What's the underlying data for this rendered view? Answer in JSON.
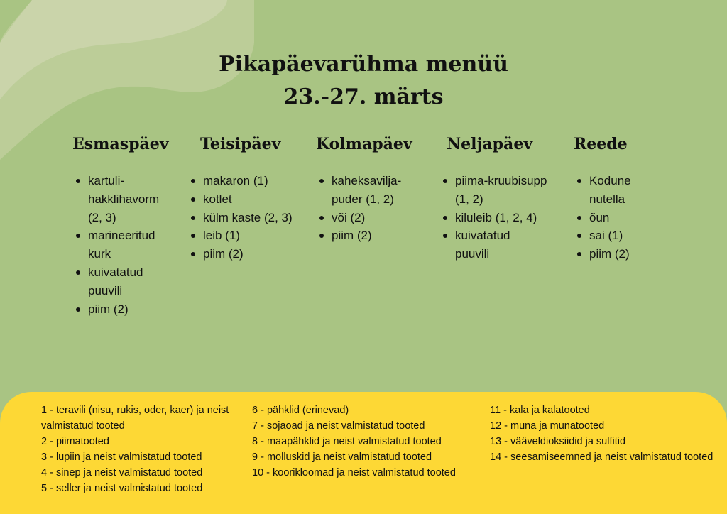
{
  "title": {
    "line1": "Pikapäevarühma menüü",
    "line2": "23.-27. märts"
  },
  "colors": {
    "background": "#a9c483",
    "legend_background": "#fdd835"
  },
  "days": [
    {
      "name": "Esmaspäev",
      "items": [
        "kartuli-hakklihavorm (2, 3)",
        "marineeritud kurk",
        "kuivatatud puuvili",
        "piim (2)"
      ]
    },
    {
      "name": "Teisipäev",
      "items": [
        "makaron (1)",
        "kotlet",
        "külm kaste (2, 3)",
        "leib (1)",
        "piim (2)"
      ]
    },
    {
      "name": "Kolmapäev",
      "items": [
        "kaheksavilja-puder (1, 2)",
        "või (2)",
        "piim (2)"
      ]
    },
    {
      "name": "Neljapäev",
      "items": [
        "piima-kruubisupp (1, 2)",
        "kiluleib (1, 2, 4)",
        "kuivatatud puuvili"
      ]
    },
    {
      "name": "Reede",
      "items": [
        "Kodune nutella",
        "õun",
        "sai (1)",
        "piim (2)"
      ]
    }
  ],
  "legend": [
    [
      "1 - teravili (nisu, rukis, oder, kaer) ja neist valmistatud tooted",
      "2 - piimatooted",
      "3 - lupiin ja neist valmistatud tooted",
      "4 - sinep ja neist valmistatud tooted",
      "5 - seller ja neist valmistatud tooted"
    ],
    [
      "6 - pähklid (erinevad)",
      "7 - sojaoad ja neist valmistatud tooted",
      "8 - maapähklid ja neist valmistatud tooted",
      "9 - molluskid ja neist valmistatud tooted",
      "10 - koorikloomad ja neist valmistatud tooted"
    ],
    [
      "11 - kala ja kalatooted",
      "12 - muna ja munatooted",
      "13 - vääveldioksiidid ja sulfitid",
      "14 - seesamiseemned ja neist valmistatud tooted"
    ]
  ]
}
